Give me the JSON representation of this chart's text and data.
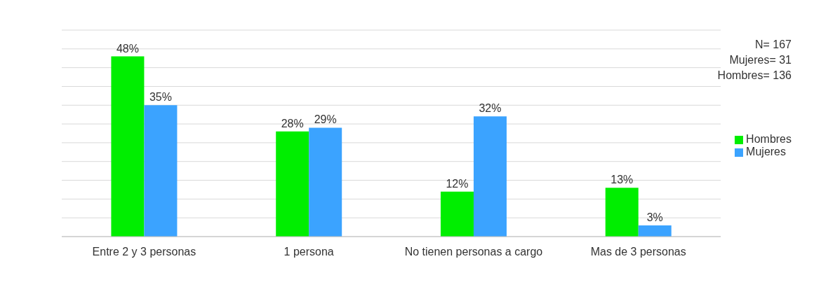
{
  "chart_data": {
    "type": "bar",
    "categories": [
      "Entre 2 y 3 personas",
      "1 persona",
      "No tienen personas a cargo",
      "Mas de 3 personas"
    ],
    "series": [
      {
        "name": "Hombres",
        "color": "#00ee00",
        "values": [
          48,
          28,
          12,
          13
        ],
        "value_labels": [
          "48%",
          "28%",
          "12%",
          "13%"
        ]
      },
      {
        "name": "Mujeres",
        "color": "#3ba3ff",
        "values": [
          35,
          29,
          32,
          3
        ],
        "value_labels": [
          "35%",
          "29%",
          "32%",
          "3%"
        ]
      }
    ],
    "tick_labels": "x",
    "grid": "y",
    "legend": "right",
    "annotations": [
      "N= 167",
      "Mujeres= 31",
      "Hombres= 136"
    ]
  }
}
